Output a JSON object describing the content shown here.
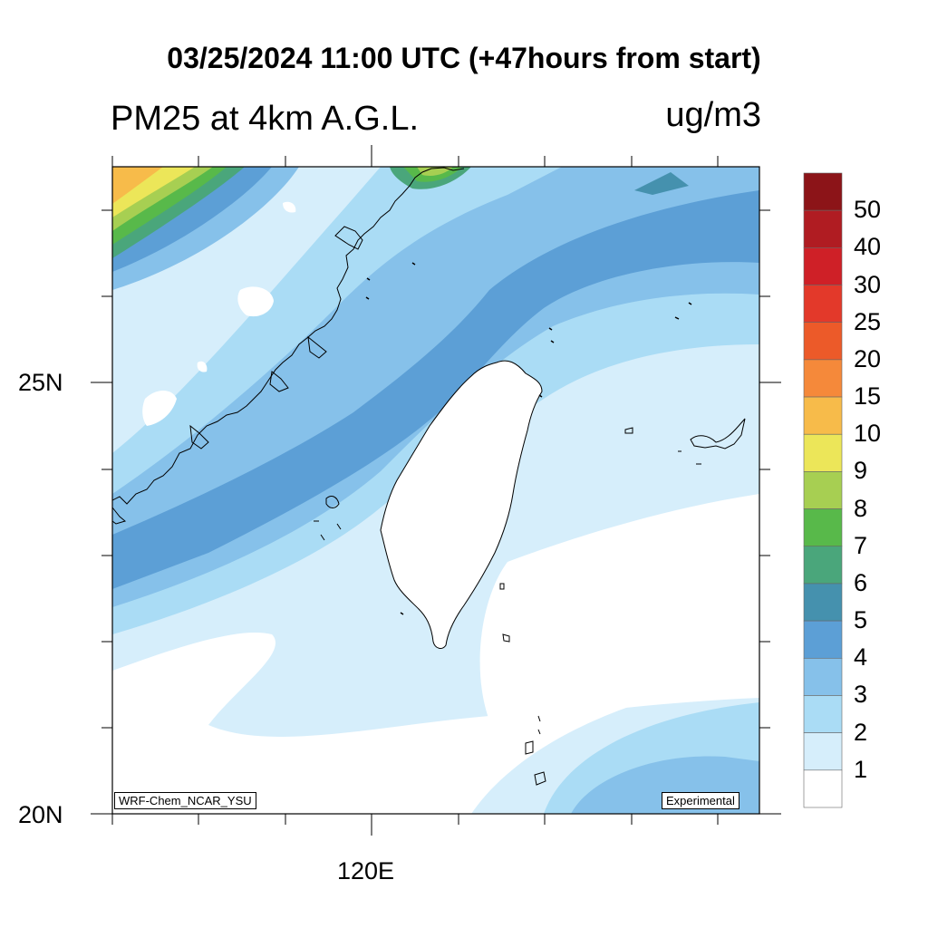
{
  "header": {
    "title": "03/25/2024 11:00 UTC (+47hours from start)",
    "subtitle": "PM25 at 4km A.G.L.",
    "units": "ug/m3"
  },
  "axes": {
    "lat_labels": [
      "25N",
      "20N"
    ],
    "lon_labels": [
      "120E"
    ]
  },
  "colorbar": {
    "labels": [
      "50",
      "40",
      "30",
      "25",
      "20",
      "15",
      "10",
      "9",
      "8",
      "7",
      "6",
      "5",
      "4",
      "3",
      "2",
      "1"
    ],
    "colors": [
      "#8c1418",
      "#b01c22",
      "#cf2027",
      "#e3392a",
      "#ec5a29",
      "#f5893a",
      "#f7bb4a",
      "#ece659",
      "#a7cf52",
      "#58b94a",
      "#4aa67b",
      "#4591ae",
      "#5c9fd6",
      "#86c1ea",
      "#aadcf5",
      "#d6eefb",
      "#ffffff"
    ]
  },
  "credits": {
    "model": "WRF-Chem_NCAR_YSU",
    "status": "Experimental"
  }
}
